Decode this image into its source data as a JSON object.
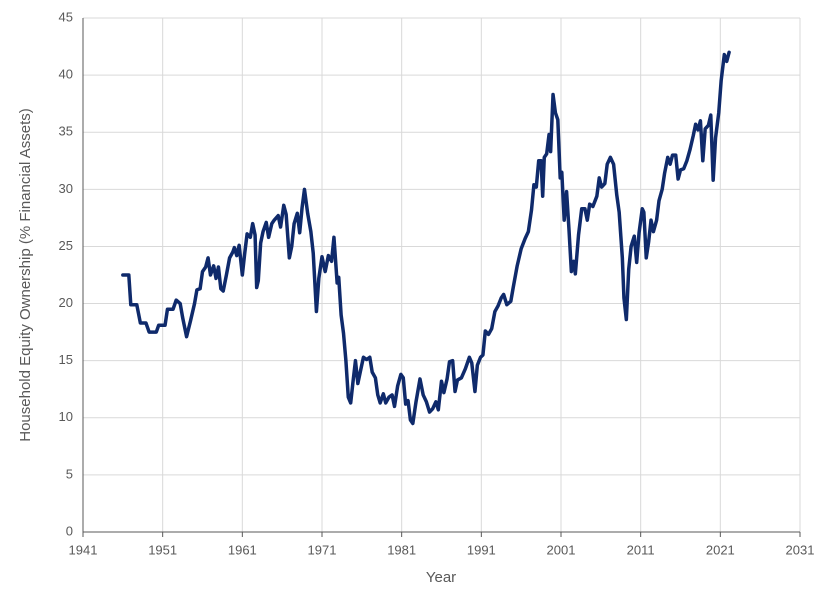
{
  "chart_data": {
    "type": "line",
    "xlabel": "Year",
    "ylabel": "Household Equity Ownership (% Financial Assets)",
    "xlim": [
      1941,
      2031
    ],
    "xticks": [
      1941,
      1951,
      1961,
      1971,
      1981,
      1991,
      2001,
      2011,
      2021,
      2031
    ],
    "ylim": [
      0,
      45
    ],
    "yticks": [
      0,
      5,
      10,
      15,
      20,
      25,
      30,
      35,
      40,
      45
    ],
    "grid": true,
    "series": [
      {
        "color": "#0f2a6b",
        "x": [
          1946,
          1946.75,
          1947,
          1947.75,
          1948.2,
          1948.9,
          1949.3,
          1950.2,
          1950.5,
          1951.3,
          1951.6,
          1952.3,
          1952.7,
          1953.2,
          1953.5,
          1954,
          1954.5,
          1955,
          1955.3,
          1955.7,
          1956,
          1956.4,
          1956.7,
          1957,
          1957.4,
          1957.7,
          1958,
          1958.3,
          1958.6,
          1959,
          1959.4,
          1959.8,
          1960,
          1960.3,
          1960.6,
          1961,
          1961.3,
          1961.6,
          1962,
          1962.3,
          1962.6,
          1962.8,
          1963,
          1963.3,
          1963.6,
          1964,
          1964.3,
          1964.7,
          1965,
          1965.5,
          1965.8,
          1966.2,
          1966.5,
          1966.9,
          1967.2,
          1967.5,
          1967.9,
          1968.2,
          1968.5,
          1968.8,
          1969.2,
          1969.6,
          1969.9,
          1970.3,
          1970.6,
          1971,
          1971.4,
          1971.8,
          1972.2,
          1972.5,
          1972.9,
          1973.1,
          1973.4,
          1973.7,
          1974,
          1974.3,
          1974.6,
          1974.9,
          1975.2,
          1975.5,
          1975.8,
          1976.2,
          1976.6,
          1977,
          1977.3,
          1977.7,
          1978,
          1978.3,
          1978.7,
          1979,
          1979.4,
          1979.8,
          1980.1,
          1980.5,
          1980.9,
          1981.2,
          1981.5,
          1981.8,
          1982.1,
          1982.4,
          1982.8,
          1983.3,
          1983.7,
          1984.1,
          1984.5,
          1984.9,
          1985.3,
          1985.6,
          1986,
          1986.3,
          1986.7,
          1987,
          1987.4,
          1987.7,
          1988,
          1988.5,
          1989,
          1989.5,
          1989.8,
          1990.2,
          1990.5,
          1990.9,
          1991.2,
          1991.5,
          1991.9,
          1992.3,
          1992.7,
          1993.1,
          1993.5,
          1993.8,
          1994.2,
          1994.7,
          1995,
          1995.5,
          1996,
          1996.5,
          1996.9,
          1997.3,
          1997.6,
          1997.9,
          1998.2,
          1998.5,
          1998.7,
          1998.9,
          1999.2,
          1999.5,
          1999.7,
          2000,
          2000.3,
          2000.6,
          2000.9,
          2001.1,
          2001.4,
          2001.7,
          2002,
          2002.3,
          2002.6,
          2002.8,
          2003.2,
          2003.6,
          2004,
          2004.3,
          2004.6,
          2005,
          2005.5,
          2005.8,
          2006.1,
          2006.5,
          2006.8,
          2007.2,
          2007.6,
          2008,
          2008.3,
          2008.7,
          2008.9,
          2009.2,
          2009.5,
          2009.8,
          2010.2,
          2010.5,
          2010.8,
          2011.2,
          2011.4,
          2011.7,
          2012,
          2012.3,
          2012.6,
          2013,
          2013.3,
          2013.7,
          2014,
          2014.4,
          2014.7,
          2015,
          2015.4,
          2015.7,
          2016,
          2016.4,
          2016.8,
          2017.2,
          2017.6,
          2017.9,
          2018.2,
          2018.5,
          2018.8,
          2019.1,
          2019.5,
          2019.8,
          2020.1,
          2020.4,
          2020.8,
          2021.1,
          2021.5,
          2021.8,
          2022.1
        ],
        "values": [
          22.5,
          22.5,
          19.9,
          19.9,
          18.3,
          18.3,
          17.5,
          17.5,
          18.1,
          18.1,
          19.5,
          19.5,
          20.3,
          20.0,
          18.8,
          17.1,
          18.5,
          20.0,
          21.2,
          21.3,
          22.8,
          23.2,
          24.0,
          22.5,
          23.3,
          22.2,
          23.2,
          21.3,
          21.1,
          22.5,
          24.0,
          24.5,
          24.9,
          24.2,
          25.1,
          22.5,
          24.4,
          26.1,
          25.8,
          27.0,
          26.0,
          21.4,
          22.0,
          25.3,
          26.3,
          27.1,
          25.8,
          27.0,
          27.3,
          27.7,
          26.7,
          28.6,
          27.8,
          24.0,
          25.0,
          27.0,
          27.9,
          26.2,
          28.4,
          30.0,
          27.9,
          26.3,
          24.4,
          19.3,
          22.2,
          24.1,
          22.8,
          24.2,
          23.7,
          25.8,
          21.8,
          22.3,
          19.0,
          17.4,
          15.0,
          11.8,
          11.3,
          13.2,
          15.0,
          13.0,
          14.0,
          15.3,
          15.1,
          15.3,
          14.0,
          13.5,
          12.0,
          11.3,
          12.1,
          11.3,
          11.8,
          12.0,
          11.0,
          12.8,
          13.8,
          13.5,
          11.2,
          11.5,
          9.8,
          9.5,
          11.4,
          13.4,
          12.0,
          11.4,
          10.5,
          10.8,
          11.4,
          10.7,
          13.2,
          12.2,
          13.4,
          14.9,
          15.0,
          12.3,
          13.3,
          13.5,
          14.3,
          15.3,
          14.8,
          12.3,
          14.6,
          15.3,
          15.5,
          17.6,
          17.3,
          17.8,
          19.3,
          19.8,
          20.5,
          20.8,
          19.9,
          20.2,
          21.4,
          23.3,
          24.8,
          25.7,
          26.3,
          28.2,
          30.4,
          30.2,
          32.5,
          32.5,
          29.4,
          32.8,
          33.1,
          34.8,
          33.3,
          38.3,
          36.7,
          36.1,
          31.0,
          31.5,
          27.3,
          29.8,
          26.5,
          22.8,
          23.7,
          22.6,
          26.0,
          28.3,
          28.3,
          27.3,
          28.7,
          28.5,
          29.4,
          31.0,
          30.2,
          30.5,
          32.2,
          32.8,
          32.2,
          29.5,
          28.0,
          24.0,
          20.5,
          18.6,
          23.0,
          25.0,
          25.9,
          23.6,
          26.2,
          28.3,
          28.0,
          24.0,
          25.4,
          27.3,
          26.3,
          27.3,
          29.0,
          30.0,
          31.4,
          32.8,
          32.2,
          33.0,
          33.0,
          30.9,
          31.7,
          31.8,
          32.5,
          33.5,
          34.7,
          35.7,
          35.2,
          36.0,
          32.5,
          35.3,
          35.6,
          36.5,
          30.8,
          34.5,
          36.7,
          39.5,
          41.8,
          41.2,
          42.0
        ]
      }
    ]
  }
}
